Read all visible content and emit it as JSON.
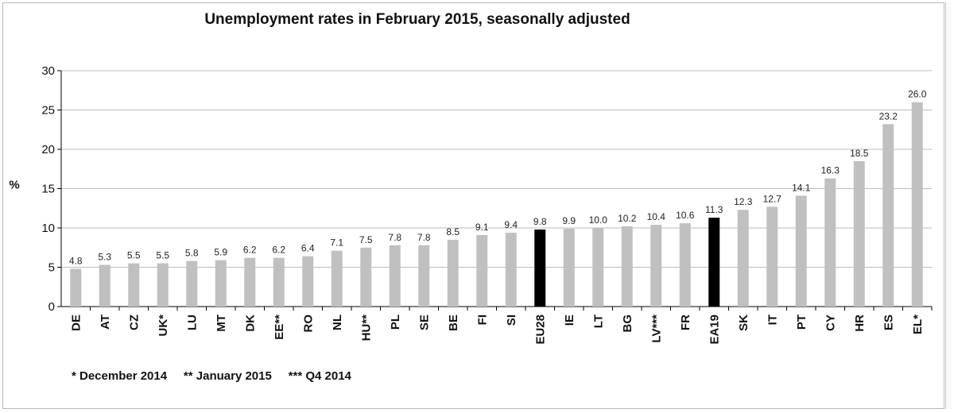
{
  "chart_data": {
    "type": "bar",
    "title": "Unemployment rates in February 2015, seasonally adjusted",
    "ylabel": "%",
    "ylim": [
      0,
      30
    ],
    "yticks": [
      0,
      5,
      10,
      15,
      20,
      25,
      30
    ],
    "grid": true,
    "categories": [
      "DE",
      "AT",
      "CZ",
      "UK*",
      "LU",
      "MT",
      "DK",
      "EE**",
      "RO",
      "NL",
      "HU**",
      "PL",
      "SE",
      "BE",
      "FI",
      "SI",
      "EU28",
      "IE",
      "LT",
      "BG",
      "LV***",
      "FR",
      "EA19",
      "SK",
      "IT",
      "PT",
      "CY",
      "HR",
      "ES",
      "EL*"
    ],
    "values": [
      4.8,
      5.3,
      5.5,
      5.5,
      5.8,
      5.9,
      6.2,
      6.2,
      6.4,
      7.1,
      7.5,
      7.8,
      7.8,
      8.5,
      9.1,
      9.4,
      9.8,
      9.9,
      10.0,
      10.2,
      10.4,
      10.6,
      11.3,
      12.3,
      12.7,
      14.1,
      16.3,
      18.5,
      23.2,
      26.0
    ],
    "value_labels": [
      "4.8",
      "5.3",
      "5.5",
      "5.5",
      "5.8",
      "5.9",
      "6.2",
      "6.2",
      "6.4",
      "7.1",
      "7.5",
      "7.8",
      "7.8",
      "8.5",
      "9.1",
      "9.4",
      "9.8",
      "9.9",
      "10.0",
      "10.2",
      "10.4",
      "10.6",
      "11.3",
      "12.3",
      "12.7",
      "14.1",
      "16.3",
      "18.5",
      "23.2",
      "26.0"
    ],
    "highlighted": [
      "EU28",
      "EA19"
    ],
    "colors": {
      "bar": "#c0c0c0",
      "highlight": "#000000",
      "grid": "#bdbdbd",
      "axis": "#000000",
      "text": "#222222"
    }
  },
  "footnote": "* December 2014     ** January 2015     *** Q4 2014"
}
